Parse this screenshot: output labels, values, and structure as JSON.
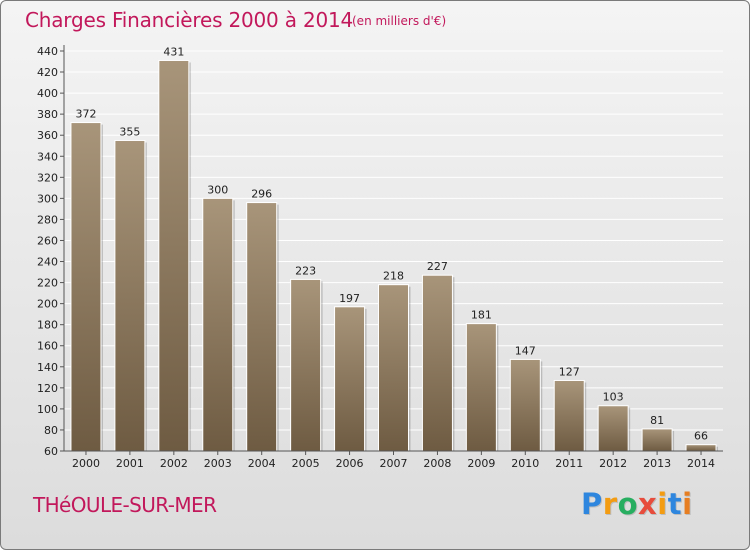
{
  "chart_data": {
    "type": "bar",
    "title": "Charges Financières 2000 à 2014",
    "subtitle": "(en milliers d'€)",
    "categories": [
      "2000",
      "2001",
      "2002",
      "2003",
      "2004",
      "2005",
      "2006",
      "2007",
      "2008",
      "2009",
      "2010",
      "2011",
      "2012",
      "2013",
      "2014"
    ],
    "values": [
      372,
      355,
      431,
      300,
      296,
      223,
      197,
      218,
      227,
      181,
      147,
      127,
      103,
      81,
      66
    ],
    "ylim": [
      60,
      440
    ],
    "yticks": [
      60,
      80,
      100,
      120,
      140,
      160,
      180,
      200,
      220,
      240,
      260,
      280,
      300,
      320,
      340,
      360,
      380,
      400,
      420,
      440
    ],
    "grid": true,
    "colors": {
      "bar_light": "#a8957a",
      "bar_dark": "#6e5b42",
      "title": "#c2185b"
    }
  },
  "commune": "THéOULE-SUR-MER",
  "logo": {
    "letters": [
      "P",
      "r",
      "o",
      "x",
      "i",
      "t",
      "i"
    ],
    "colors": [
      "#2e86de",
      "#f39c12",
      "#27ae60",
      "#e74c3c",
      "#f39c12",
      "#2e86de",
      "#e67e22"
    ]
  }
}
